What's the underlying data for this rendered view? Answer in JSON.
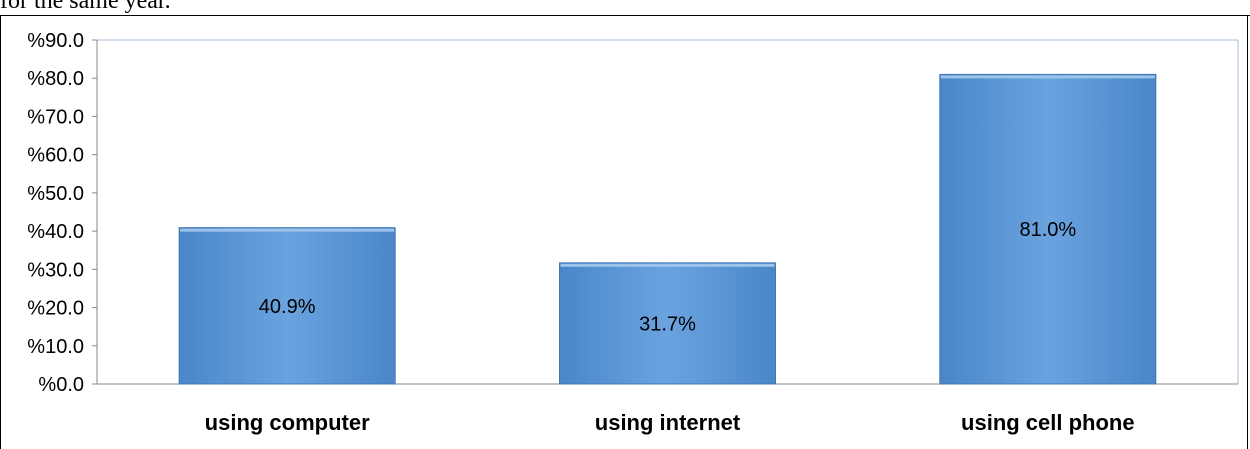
{
  "page": {
    "caption": "for the same year."
  },
  "chart_data": {
    "type": "bar",
    "categories": [
      "using computer",
      "using  internet",
      "using  cell phone"
    ],
    "values": [
      40.9,
      31.7,
      81.0
    ],
    "value_labels": [
      "40.9%",
      "31.7%",
      "81.0%"
    ],
    "yticks": [
      "%0.0",
      "%10.0",
      "%20.0",
      "%30.0",
      "%40.0",
      "%50.0",
      "%60.0",
      "%70.0",
      "%80.0",
      "%90.0"
    ],
    "ylim": [
      0,
      90
    ],
    "title": "",
    "xlabel": "",
    "ylabel": "",
    "grid": false,
    "colors": {
      "bar_fill": "#5b9bd5",
      "bar_edge": "#3f78b5",
      "bar_top": "#9cc3ea",
      "plot_border": "#a8bfdc",
      "axis": "#8a8a8a"
    }
  }
}
